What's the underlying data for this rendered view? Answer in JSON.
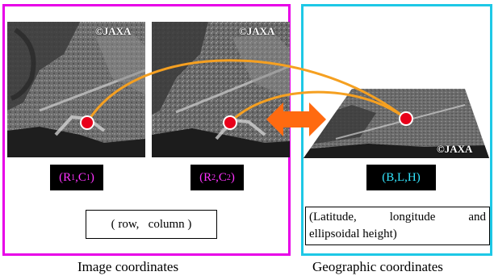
{
  "copyright": "©JAXA",
  "image_label_1": {
    "prefix": "(R",
    "sub1": "1",
    "mid": ",C",
    "sub2": "1",
    "suffix": ")"
  },
  "image_label_2": {
    "prefix": "(R",
    "sub1": "2",
    "mid": ",C",
    "sub2": "2",
    "suffix": ")"
  },
  "geo_label": "(B,L,H)",
  "rowcol_text": "( row,   column )",
  "latlon_line1": "(Latitude, longitude and",
  "latlon_line2": "ellipsoidal height)",
  "caption_left": "Image coordinates",
  "caption_right": "Geographic coordinates",
  "colors": {
    "image_frame": "#e800e8",
    "geo_frame": "#1ec8e6",
    "ray": "#f5a021",
    "double_arrow": "#ff6a10",
    "point": "#e8001a"
  }
}
